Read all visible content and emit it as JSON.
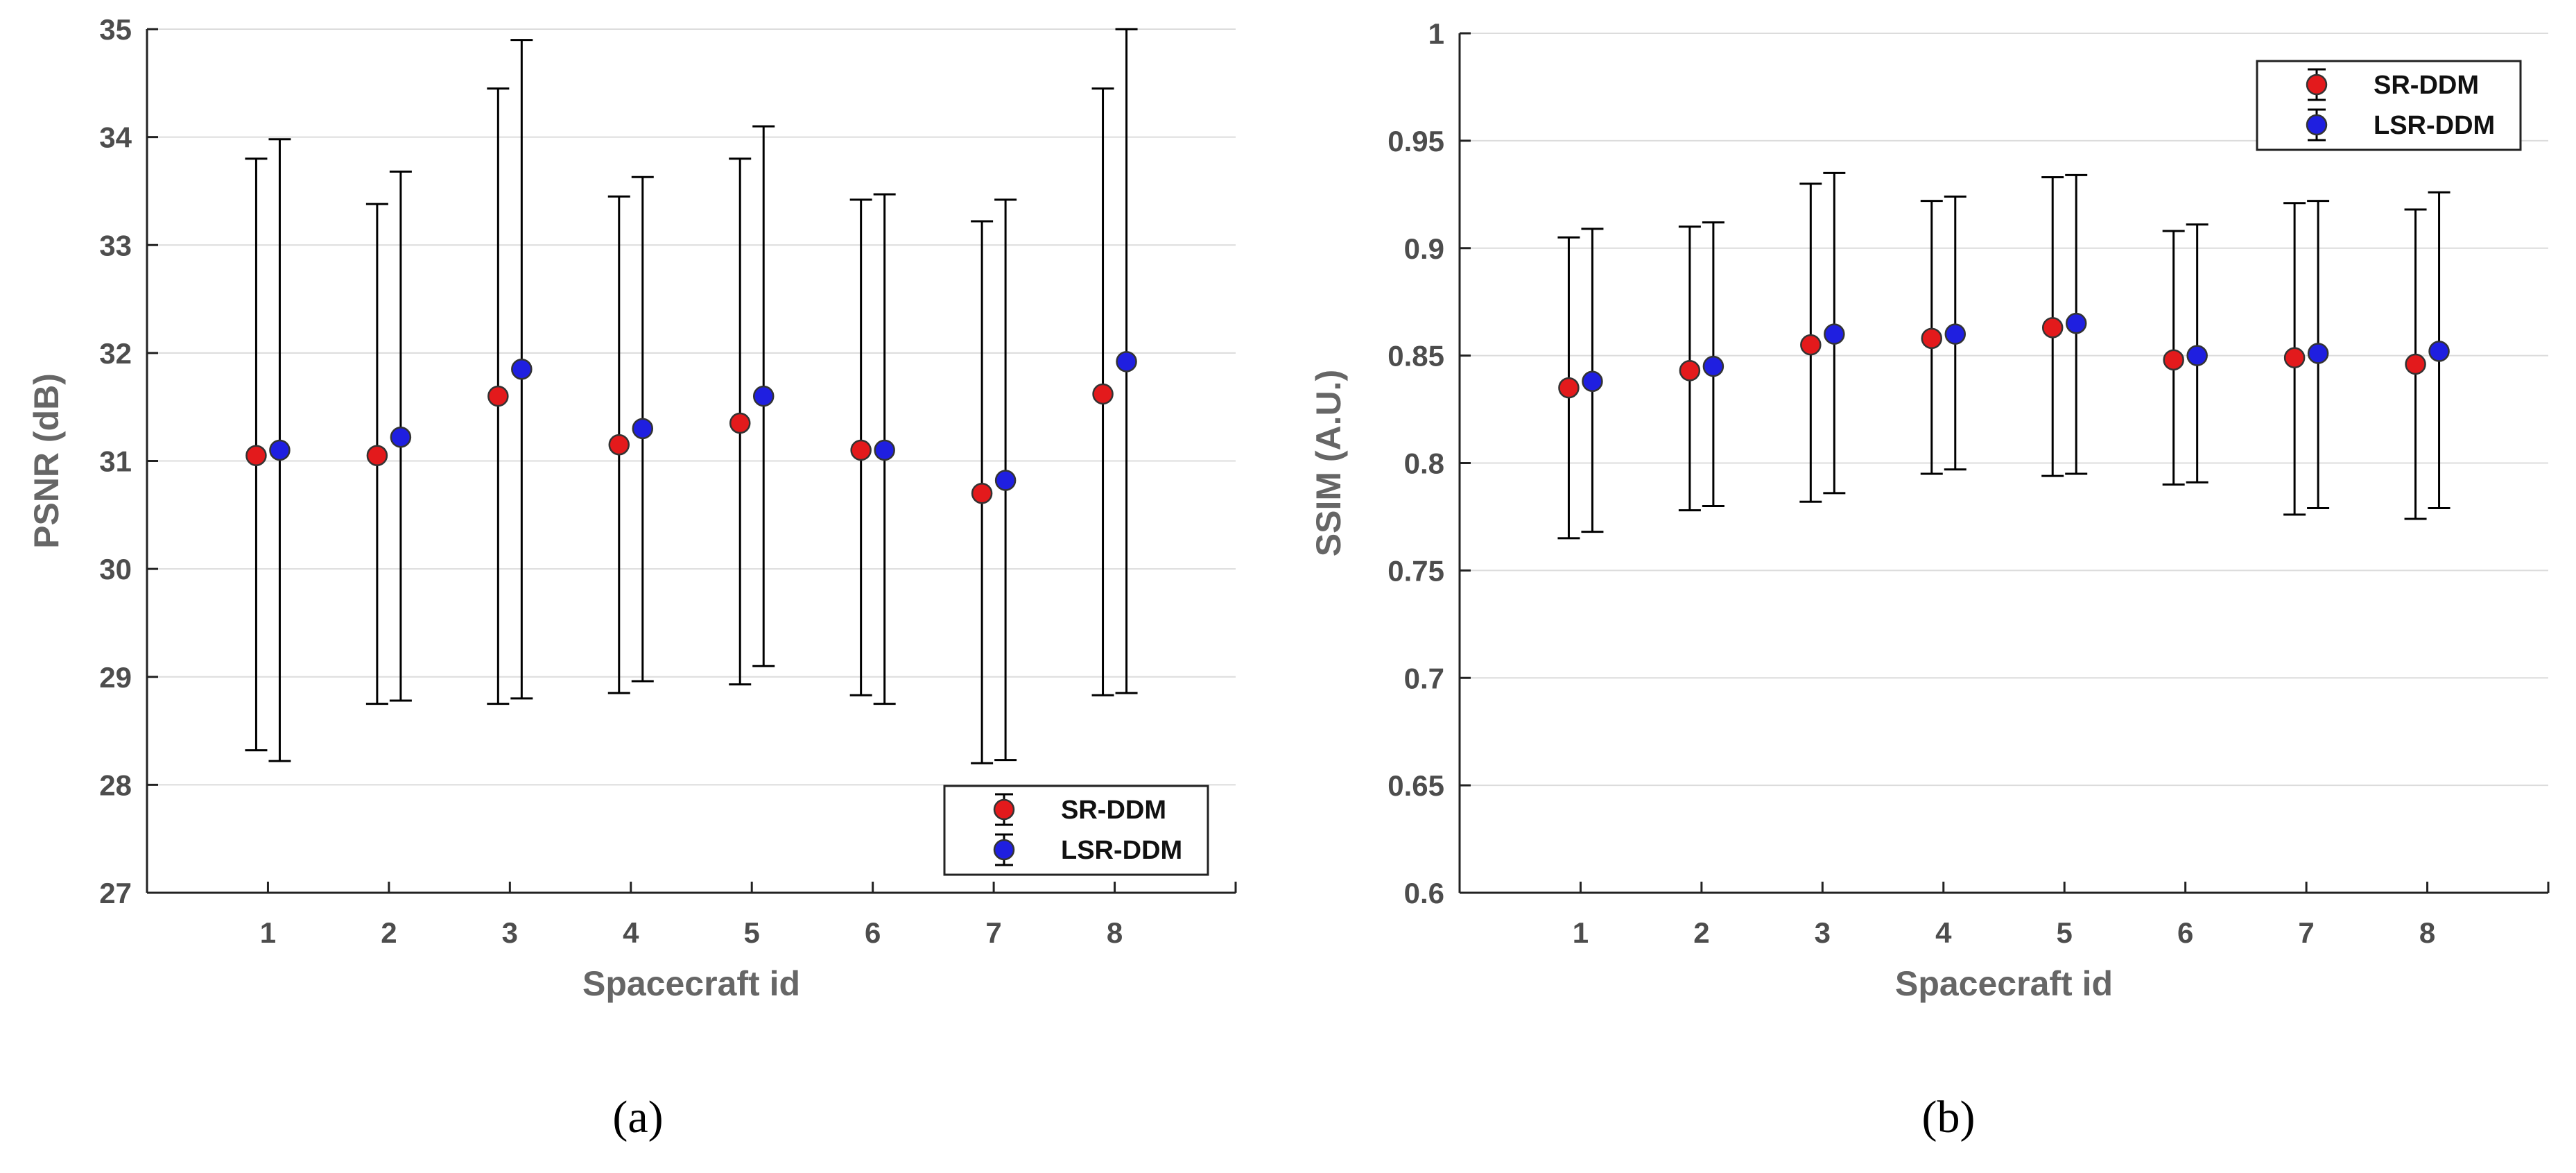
{
  "chart_data": [
    {
      "type": "scatter",
      "panel": "a",
      "caption": "(a)",
      "title": "",
      "xlabel": "Spacecraft id",
      "ylabel": "PSNR (dB)",
      "categories": [
        "1",
        "2",
        "3",
        "4",
        "5",
        "6",
        "7",
        "8"
      ],
      "ylim": [
        27,
        35
      ],
      "yticks": [
        27,
        28,
        29,
        30,
        31,
        32,
        33,
        34,
        35
      ],
      "ytick_labels": [
        "27",
        "28",
        "29",
        "30",
        "31",
        "32",
        "33",
        "34",
        "35"
      ],
      "grid": "horizontal",
      "legend_position": "bottom-right",
      "series": [
        {
          "name": "SR-DDM",
          "color": "#e31a1c",
          "values": [
            31.05,
            31.05,
            31.6,
            31.15,
            31.35,
            31.1,
            30.7,
            31.62
          ],
          "lower": [
            28.32,
            28.75,
            28.75,
            28.85,
            28.93,
            28.83,
            28.2,
            28.83
          ],
          "upper": [
            33.8,
            33.38,
            34.45,
            33.45,
            33.8,
            33.42,
            33.22,
            34.45
          ]
        },
        {
          "name": "LSR-DDM",
          "color": "#1f1fe0",
          "values": [
            31.1,
            31.22,
            31.85,
            31.3,
            31.6,
            31.1,
            30.82,
            31.92
          ],
          "lower": [
            28.22,
            28.78,
            28.8,
            28.96,
            29.1,
            28.75,
            28.23,
            28.85
          ],
          "upper": [
            33.98,
            33.68,
            34.9,
            33.63,
            34.1,
            33.47,
            33.42,
            35.0
          ]
        }
      ]
    },
    {
      "type": "scatter",
      "panel": "b",
      "caption": "(b)",
      "title": "",
      "xlabel": "Spacecraft id",
      "ylabel": "SSIM (A.U.)",
      "categories": [
        "1",
        "2",
        "3",
        "4",
        "5",
        "6",
        "7",
        "8"
      ],
      "ylim": [
        0.6,
        1.0
      ],
      "yticks": [
        0.6,
        0.65,
        0.7,
        0.75,
        0.8,
        0.85,
        0.9,
        0.95,
        1.0
      ],
      "ytick_labels": [
        "0.6",
        "0.65",
        "0.7",
        "0.75",
        "0.8",
        "0.85",
        "0.9",
        "0.95",
        "1"
      ],
      "grid": "horizontal",
      "legend_position": "top-right",
      "series": [
        {
          "name": "SR-DDM",
          "color": "#e31a1c",
          "values": [
            0.835,
            0.843,
            0.855,
            0.858,
            0.863,
            0.848,
            0.849,
            0.846
          ],
          "lower": [
            0.765,
            0.778,
            0.782,
            0.795,
            0.794,
            0.79,
            0.776,
            0.774
          ],
          "upper": [
            0.905,
            0.91,
            0.93,
            0.922,
            0.933,
            0.908,
            0.921,
            0.918
          ]
        },
        {
          "name": "LSR-DDM",
          "color": "#1f1fe0",
          "values": [
            0.838,
            0.845,
            0.86,
            0.86,
            0.865,
            0.85,
            0.851,
            0.852
          ],
          "lower": [
            0.768,
            0.78,
            0.786,
            0.797,
            0.795,
            0.791,
            0.779,
            0.779
          ],
          "upper": [
            0.909,
            0.912,
            0.935,
            0.924,
            0.934,
            0.911,
            0.922,
            0.926
          ]
        }
      ]
    }
  ]
}
